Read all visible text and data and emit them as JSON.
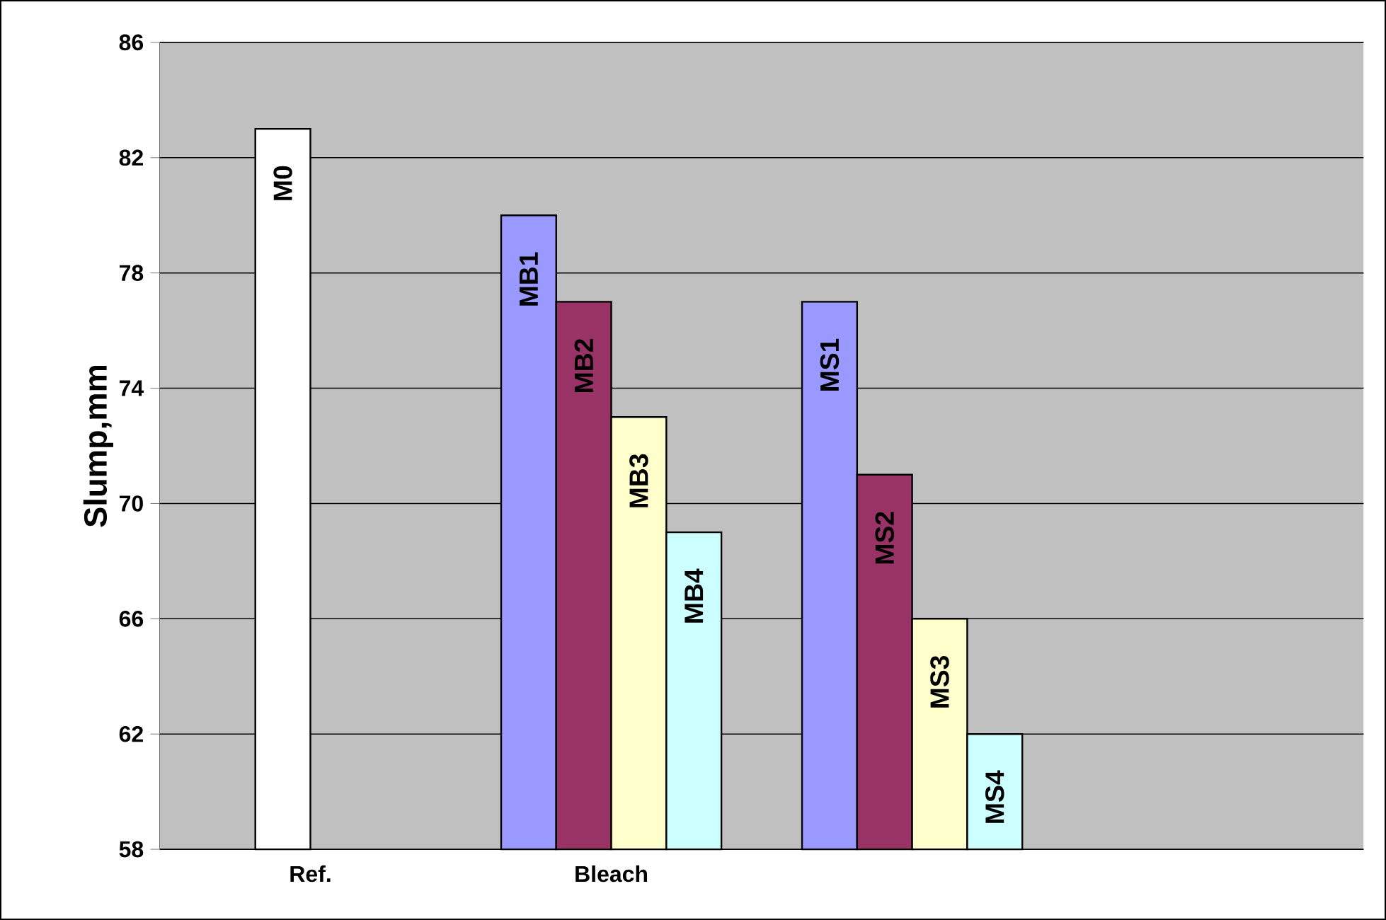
{
  "chart_data": {
    "type": "bar",
    "ylabel": "Slump,mm",
    "categories": [
      "Ref.",
      "Bleach",
      null,
      null
    ],
    "series": [
      {
        "colors": [
          "#9999ff",
          "#9999ff",
          "#9999ff",
          "#9999ff"
        ],
        "values": [
          null,
          80,
          77,
          null
        ],
        "value_labels": [
          null,
          "MB1",
          "MS1",
          null
        ]
      },
      {
        "colors": [
          "#ffffff",
          "#993366",
          "#993366",
          "#993366"
        ],
        "values": [
          83,
          77,
          71,
          null
        ],
        "value_labels": [
          "M0",
          "MB2",
          "MS2",
          null
        ]
      },
      {
        "colors": [
          "#ffffcc",
          "#ffffcc",
          "#ffffcc",
          "#ffffcc"
        ],
        "values": [
          null,
          73,
          66,
          null
        ],
        "value_labels": [
          null,
          "MB3",
          "MS3",
          null
        ]
      },
      {
        "colors": [
          "#ccffff",
          "#ccffff",
          "#ccffff",
          "#ccffff"
        ],
        "values": [
          null,
          69,
          62,
          null
        ],
        "value_labels": [
          null,
          "MB4",
          "MS4",
          null
        ]
      }
    ],
    "ylim": [
      58,
      86
    ],
    "yticks": [
      58,
      62,
      66,
      70,
      74,
      78,
      82,
      86
    ],
    "grid": "y"
  }
}
